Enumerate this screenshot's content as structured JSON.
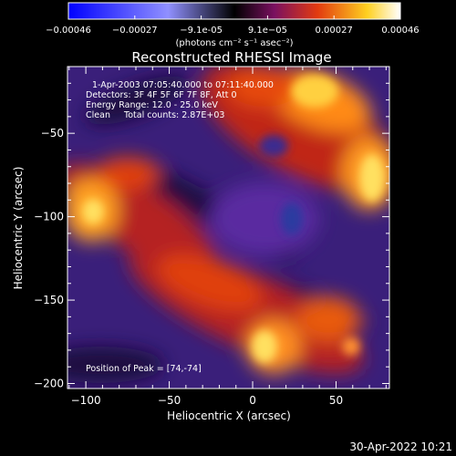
{
  "chart_data": {
    "type": "heatmap",
    "title": "Reconstructed RHESSI Image",
    "xlabel": "Heliocentric X (arcsec)",
    "ylabel": "Heliocentric Y (arcsec)",
    "xlim": [
      -111,
      82
    ],
    "ylim": [
      -203,
      -10
    ],
    "x_ticks": [
      -100,
      -50,
      0,
      50
    ],
    "y_ticks": [
      -200,
      -150,
      -100,
      -50
    ],
    "colorbar": {
      "ticks": [
        "-0.00046",
        "-0.00027",
        "-9.1e-05",
        "9.1e-05",
        "0.00027",
        "0.00046"
      ],
      "unit_label": "(photons cm⁻² s⁻¹ asec⁻²)",
      "range": [
        -0.00046,
        0.00046
      ]
    },
    "annotations": {
      "time_range": "1-Apr-2003 07:05:40.000 to 07:11:40.000",
      "detectors": "Detectors: 3F 4F 5F 6F 7F 8F, Att 0",
      "energy_range": "Energy Range: 12.0 - 25.0 keV",
      "clean_counts": "Clean     Total counts: 2.87E+03",
      "peak_position": "Position of Peak = [74,-74]"
    },
    "colors": {
      "negative_min": "#0000ff",
      "negative_mid": "#8080ff",
      "near_zero": "#2a1a55",
      "positive_low": "#5b2a8a",
      "positive_mid": "#e23a10",
      "positive_high": "#ffb020",
      "positive_max": "#ffffff"
    }
  },
  "footer": {
    "timestamp": "30-Apr-2022 10:21"
  }
}
